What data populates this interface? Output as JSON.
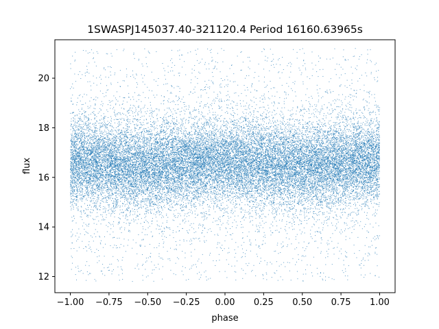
{
  "chart_data": {
    "type": "scatter",
    "title": "1SWASPJ145037.40-321120.4 Period 16160.63965s",
    "xlabel": "phase",
    "ylabel": "flux",
    "xlim": [
      -1.1,
      1.1
    ],
    "ylim": [
      11.35,
      21.55
    ],
    "xticks": [
      -1.0,
      -0.75,
      -0.5,
      -0.25,
      0.0,
      0.25,
      0.5,
      0.75,
      1.0
    ],
    "xtick_labels": [
      "−1.00",
      "−0.75",
      "−0.50",
      "−0.25",
      "0.00",
      "0.25",
      "0.50",
      "0.75",
      "1.00"
    ],
    "yticks": [
      12,
      14,
      16,
      18,
      20
    ],
    "ytick_labels": [
      "12",
      "14",
      "16",
      "18",
      "20"
    ],
    "grid": false,
    "marker_color": "#1f77b4",
    "series": [
      {
        "phase_range": [
          -1.0,
          1.0
        ],
        "flux_range": [
          11.8,
          21.2
        ],
        "density_center_flux": 16.5,
        "density_sigma_flux": 0.8,
        "sample_points": [
          {
            "x": -1.0,
            "y": 16.6
          },
          {
            "x": -0.75,
            "y": 16.5
          },
          {
            "x": -0.5,
            "y": 16.4
          },
          {
            "x": -0.25,
            "y": 16.4
          },
          {
            "x": 0.0,
            "y": 16.4
          },
          {
            "x": 0.25,
            "y": 16.4
          },
          {
            "x": 0.5,
            "y": 16.5
          },
          {
            "x": 0.75,
            "y": 16.6
          },
          {
            "x": 1.0,
            "y": 16.6
          }
        ]
      }
    ]
  }
}
